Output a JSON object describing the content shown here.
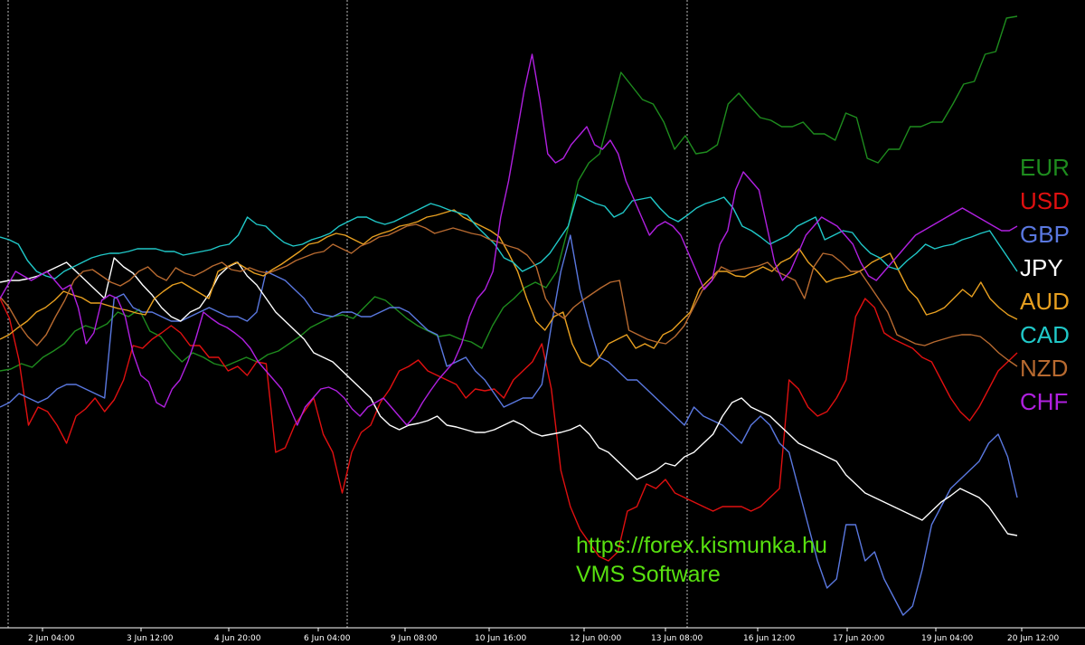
{
  "chart_data": {
    "type": "line",
    "x_ticks": [
      "2 Jun 04:00",
      "3 Jun 12:00",
      "4 Jun 20:00",
      "6 Jun 04:00",
      "9 Jun 08:00",
      "10 Jun 16:00",
      "12 Jun 00:00",
      "13 Jun 08:00",
      "16 Jun 12:00",
      "17 Jun 20:00",
      "19 Jun 04:00",
      "20 Jun 12:00"
    ],
    "vertical_separators_at_ticks": [
      0,
      3,
      8
    ],
    "grid": false,
    "legend_position": "right",
    "series": [
      {
        "name": "EUR",
        "color": "#1e8c1e",
        "values": [
          410,
          408,
          402,
          406,
          395,
          388,
          380,
          366,
          360,
          364,
          358,
          345,
          350,
          342,
          366,
          372,
          388,
          400,
          390,
          395,
          402,
          405,
          400,
          395,
          400,
          392,
          388,
          380,
          372,
          362,
          356,
          350,
          348,
          352,
          340,
          328,
          332,
          342,
          352,
          360,
          366,
          372,
          370,
          375,
          378,
          385,
          360,
          340,
          330,
          318,
          312,
          318,
          300,
          255,
          200,
          180,
          170,
          125,
          80,
          95,
          110,
          115,
          135,
          165,
          150,
          170,
          168,
          160,
          115,
          103,
          117,
          130,
          133,
          140,
          140,
          135,
          148,
          148,
          155,
          125,
          130,
          175,
          180,
          165,
          165,
          140,
          140,
          135,
          135,
          115,
          93,
          90,
          60,
          57,
          20,
          18
        ]
      },
      {
        "name": "USD",
        "color": "#e01010",
        "values": [
          330,
          352,
          398,
          470,
          450,
          455,
          470,
          490,
          460,
          452,
          440,
          455,
          442,
          420,
          382,
          385,
          375,
          368,
          360,
          368,
          382,
          382,
          395,
          395,
          410,
          405,
          415,
          400,
          402,
          500,
          495,
          470,
          455,
          440,
          480,
          500,
          545,
          500,
          478,
          470,
          445,
          430,
          410,
          405,
          398,
          410,
          415,
          420,
          425,
          440,
          430,
          432,
          430,
          440,
          420,
          410,
          400,
          380,
          430,
          520,
          560,
          585,
          600,
          615,
          620,
          610,
          565,
          560,
          535,
          540,
          530,
          545,
          550,
          555,
          560,
          565,
          560,
          560,
          560,
          565,
          560,
          550,
          540,
          420,
          430,
          450,
          460,
          455,
          440,
          420,
          350,
          330,
          340,
          368,
          375,
          380,
          385,
          395,
          400,
          420,
          440,
          455,
          465,
          450,
          430,
          410,
          400,
          390
        ]
      },
      {
        "name": "GBP",
        "color": "#5a78e0",
        "values": [
          450,
          445,
          435,
          440,
          445,
          440,
          430,
          425,
          425,
          430,
          435,
          440,
          330,
          325,
          340,
          345,
          345,
          350,
          355,
          355,
          350,
          345,
          340,
          345,
          350,
          350,
          355,
          345,
          300,
          305,
          310,
          320,
          330,
          345,
          348,
          350,
          345,
          345,
          350,
          350,
          345,
          340,
          340,
          345,
          355,
          365,
          370,
          405,
          400,
          395,
          410,
          420,
          435,
          450,
          445,
          440,
          440,
          425,
          360,
          300,
          260,
          320,
          360,
          395,
          400,
          410,
          420,
          420,
          430,
          440,
          450,
          460,
          470,
          450,
          460,
          465,
          470,
          480,
          490,
          470,
          460,
          470,
          490,
          500,
          540,
          580,
          620,
          650,
          640,
          580,
          580,
          620,
          610,
          640,
          660,
          680,
          670,
          630,
          580,
          560,
          540,
          530,
          520,
          510,
          490,
          480,
          505,
          550
        ]
      },
      {
        "name": "JPY",
        "color": "#ffffff",
        "values": [
          312,
          310,
          310,
          308,
          305,
          300,
          295,
          290,
          300,
          310,
          320,
          330,
          285,
          295,
          302,
          315,
          326,
          340,
          350,
          355,
          345,
          340,
          325,
          305,
          295,
          290,
          305,
          315,
          330,
          345,
          355,
          365,
          375,
          390,
          395,
          400,
          410,
          420,
          430,
          440,
          460,
          470,
          475,
          470,
          468,
          465,
          460,
          470,
          472,
          475,
          478,
          478,
          475,
          470,
          465,
          470,
          478,
          482,
          480,
          478,
          475,
          470,
          480,
          495,
          500,
          510,
          520,
          530,
          525,
          520,
          512,
          515,
          505,
          500,
          490,
          480,
          460,
          445,
          440,
          450,
          455,
          460,
          470,
          480,
          490,
          495,
          500,
          505,
          510,
          525,
          535,
          545,
          550,
          555,
          560,
          565,
          570,
          575,
          565,
          555,
          548,
          540,
          545,
          550,
          560,
          575,
          590,
          592
        ]
      },
      {
        "name": "AUD",
        "color": "#e8a020",
        "values": [
          375,
          370,
          362,
          355,
          345,
          340,
          332,
          322,
          326,
          329,
          335,
          335,
          338,
          341,
          343,
          346,
          348,
          330,
          322,
          315,
          312,
          318,
          324,
          330,
          300,
          295,
          290,
          296,
          302,
          305,
          298,
          292,
          285,
          278,
          270,
          268,
          262,
          258,
          260,
          265,
          270,
          262,
          258,
          255,
          250,
          248,
          245,
          240,
          238,
          235,
          232,
          240,
          245,
          250,
          255,
          262,
          280,
          300,
          330,
          355,
          365,
          350,
          345,
          380,
          400,
          405,
          395,
          380,
          375,
          370,
          385,
          380,
          385,
          370,
          365,
          355,
          345,
          320,
          310,
          300,
          300,
          305,
          306,
          300,
          295,
          300,
          290,
          285,
          275,
          290,
          300,
          312,
          308,
          306,
          303,
          298,
          290,
          285,
          280,
          300,
          320,
          330,
          348,
          345,
          340,
          330,
          320,
          328,
          312,
          330,
          340,
          348,
          353
        ]
      },
      {
        "name": "CAD",
        "color": "#20c8c8",
        "values": [
          262,
          265,
          270,
          288,
          300,
          305,
          308,
          300,
          295,
          290,
          285,
          282,
          280,
          280,
          278,
          275,
          275,
          275,
          278,
          278,
          282,
          280,
          278,
          276,
          272,
          270,
          260,
          240,
          248,
          250,
          260,
          268,
          272,
          270,
          265,
          262,
          258,
          250,
          245,
          240,
          240,
          245,
          248,
          245,
          240,
          235,
          230,
          225,
          228,
          232,
          235,
          238,
          250,
          260,
          270,
          285,
          290,
          300,
          295,
          290,
          280,
          265,
          250,
          215,
          220,
          225,
          228,
          240,
          235,
          222,
          220,
          218,
          230,
          240,
          245,
          238,
          230,
          225,
          222,
          218,
          230,
          250,
          255,
          262,
          270,
          265,
          260,
          250,
          245,
          240,
          265,
          260,
          255,
          257,
          270,
          280,
          285,
          295,
          298,
          288,
          280,
          270,
          275,
          272,
          270,
          265,
          262,
          258,
          255,
          270,
          285,
          300
        ]
      },
      {
        "name": "NZD",
        "color": "#b86a30",
        "values": [
          328,
          340,
          358,
          372,
          382,
          370,
          350,
          332,
          310,
          300,
          298,
          305,
          312,
          316,
          310,
          300,
          295,
          305,
          310,
          296,
          302,
          305,
          300,
          294,
          290,
          298,
          300,
          296,
          300,
          302,
          298,
          294,
          288,
          284,
          280,
          278,
          270,
          275,
          280,
          272,
          268,
          262,
          260,
          255,
          250,
          248,
          252,
          258,
          255,
          252,
          255,
          258,
          260,
          265,
          268,
          272,
          275,
          282,
          295,
          330,
          345,
          352,
          340,
          332,
          325,
          318,
          312,
          310,
          365,
          370,
          375,
          378,
          380,
          372,
          360,
          340,
          320,
          310,
          295,
          300,
          298,
          296,
          294,
          290,
          300,
          305,
          310,
          330,
          295,
          280,
          282,
          290,
          300,
          300,
          315,
          330,
          345,
          370,
          375,
          380,
          382,
          378,
          375,
          372,
          370,
          370,
          372,
          380,
          390,
          398,
          405
        ]
      },
      {
        "name": "CHF",
        "color": "#b020e0",
        "values": [
          330,
          315,
          300,
          305,
          310,
          305,
          300,
          310,
          320,
          315,
          340,
          380,
          368,
          332,
          326,
          330,
          350,
          390,
          415,
          422,
          445,
          450,
          430,
          420,
          400,
          375,
          345,
          352,
          358,
          362,
          368,
          375,
          385,
          400,
          410,
          420,
          430,
          450,
          470,
          450,
          440,
          430,
          428,
          432,
          440,
          452,
          460,
          450,
          445,
          440,
          450,
          460,
          470,
          460,
          445,
          432,
          420,
          410,
          400,
          380,
          350,
          330,
          320,
          300,
          240,
          200,
          150,
          100,
          60,
          110,
          170,
          180,
          175,
          160,
          150,
          140,
          160,
          165,
          155,
          170,
          200,
          220,
          240,
          260,
          250,
          245,
          250,
          260,
          280,
          300,
          320,
          310,
          270,
          255,
          210,
          190,
          200,
          210,
          250,
          290,
          310,
          300,
          280,
          260,
          250,
          240,
          245,
          250,
          260,
          270,
          290,
          305,
          310,
          300,
          290,
          280,
          270,
          260,
          255,
          250,
          245,
          240,
          235,
          230,
          235,
          240,
          245,
          250,
          255,
          255,
          250
        ]
      }
    ]
  },
  "watermark": {
    "line1": "https://forex.kismunka.hu",
    "line2": "VMS Software",
    "color": "#58e010"
  },
  "background_color": "#000000",
  "axis_color": "#ffffff"
}
